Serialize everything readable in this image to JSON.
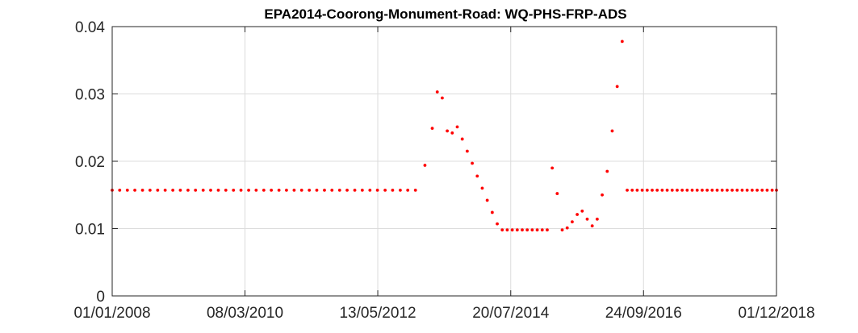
{
  "chart_data": {
    "type": "scatter",
    "title": "EPA2014-Coorong-Monument-Road: WQ-PHS-FRP-ADS",
    "xlabel": "",
    "ylabel": "",
    "x_axis": "date",
    "xlim": [
      "2008-01-01",
      "2018-12-01"
    ],
    "ylim": [
      0,
      0.04
    ],
    "xticks": [
      "2008-01-01",
      "2010-03-08",
      "2012-05-13",
      "2014-07-20",
      "2016-09-24",
      "2018-12-01"
    ],
    "xtick_labels": [
      "01/01/2008",
      "08/03/2010",
      "13/05/2012",
      "20/07/2014",
      "24/09/2016",
      "01/12/2018"
    ],
    "yticks": [
      0,
      0.01,
      0.02,
      0.03,
      0.04
    ],
    "ytick_labels": [
      "0",
      "0.01",
      "0.02",
      "0.03",
      "0.04"
    ],
    "grid": true,
    "legend": "none",
    "colors": {
      "marker": "#ff0000",
      "grid": "#dcdcdc",
      "axis": "#262626"
    },
    "series": [
      {
        "color": "#ff0000",
        "points": [
          {
            "x": "2008-01-01",
            "y": 0.0157
          },
          {
            "x": "2008-02-15",
            "y": 0.0157
          },
          {
            "x": "2008-04-01",
            "y": 0.0157
          },
          {
            "x": "2008-05-16",
            "y": 0.0157
          },
          {
            "x": "2008-07-01",
            "y": 0.0157
          },
          {
            "x": "2008-08-15",
            "y": 0.0157
          },
          {
            "x": "2008-09-30",
            "y": 0.0157
          },
          {
            "x": "2008-11-14",
            "y": 0.0157
          },
          {
            "x": "2008-12-30",
            "y": 0.0157
          },
          {
            "x": "2009-02-13",
            "y": 0.0157
          },
          {
            "x": "2009-03-31",
            "y": 0.0157
          },
          {
            "x": "2009-05-15",
            "y": 0.0157
          },
          {
            "x": "2009-06-30",
            "y": 0.0157
          },
          {
            "x": "2009-08-14",
            "y": 0.0157
          },
          {
            "x": "2009-09-29",
            "y": 0.0157
          },
          {
            "x": "2009-11-13",
            "y": 0.0157
          },
          {
            "x": "2009-12-29",
            "y": 0.0157
          },
          {
            "x": "2010-02-12",
            "y": 0.0157
          },
          {
            "x": "2010-03-30",
            "y": 0.0157
          },
          {
            "x": "2010-05-14",
            "y": 0.0157
          },
          {
            "x": "2010-06-29",
            "y": 0.0157
          },
          {
            "x": "2010-08-13",
            "y": 0.0157
          },
          {
            "x": "2010-09-28",
            "y": 0.0157
          },
          {
            "x": "2010-11-12",
            "y": 0.0157
          },
          {
            "x": "2010-12-28",
            "y": 0.0157
          },
          {
            "x": "2011-02-11",
            "y": 0.0157
          },
          {
            "x": "2011-03-29",
            "y": 0.0157
          },
          {
            "x": "2011-05-13",
            "y": 0.0157
          },
          {
            "x": "2011-06-28",
            "y": 0.0157
          },
          {
            "x": "2011-08-12",
            "y": 0.0157
          },
          {
            "x": "2011-09-27",
            "y": 0.0157
          },
          {
            "x": "2011-11-11",
            "y": 0.0157
          },
          {
            "x": "2011-12-27",
            "y": 0.0157
          },
          {
            "x": "2012-02-10",
            "y": 0.0157
          },
          {
            "x": "2012-03-27",
            "y": 0.0157
          },
          {
            "x": "2012-05-11",
            "y": 0.0157
          },
          {
            "x": "2012-06-26",
            "y": 0.0157
          },
          {
            "x": "2012-08-10",
            "y": 0.0157
          },
          {
            "x": "2012-09-25",
            "y": 0.0157
          },
          {
            "x": "2012-11-09",
            "y": 0.0157
          },
          {
            "x": "2012-12-25",
            "y": 0.0157
          },
          {
            "x": "2013-02-20",
            "y": 0.0194
          },
          {
            "x": "2013-04-05",
            "y": 0.0249
          },
          {
            "x": "2013-05-05",
            "y": 0.0303
          },
          {
            "x": "2013-06-04",
            "y": 0.0294
          },
          {
            "x": "2013-07-04",
            "y": 0.0245
          },
          {
            "x": "2013-08-03",
            "y": 0.0242
          },
          {
            "x": "2013-09-02",
            "y": 0.0251
          },
          {
            "x": "2013-10-02",
            "y": 0.0233
          },
          {
            "x": "2013-11-01",
            "y": 0.0215
          },
          {
            "x": "2013-12-01",
            "y": 0.0197
          },
          {
            "x": "2013-12-31",
            "y": 0.0178
          },
          {
            "x": "2014-01-30",
            "y": 0.016
          },
          {
            "x": "2014-03-01",
            "y": 0.0142
          },
          {
            "x": "2014-03-31",
            "y": 0.0124
          },
          {
            "x": "2014-04-30",
            "y": 0.0107
          },
          {
            "x": "2014-05-30",
            "y": 0.0098
          },
          {
            "x": "2014-06-29",
            "y": 0.0098
          },
          {
            "x": "2014-07-29",
            "y": 0.0098
          },
          {
            "x": "2014-08-28",
            "y": 0.0098
          },
          {
            "x": "2014-09-27",
            "y": 0.0098
          },
          {
            "x": "2014-10-27",
            "y": 0.0098
          },
          {
            "x": "2014-11-26",
            "y": 0.0098
          },
          {
            "x": "2014-12-26",
            "y": 0.0098
          },
          {
            "x": "2015-01-25",
            "y": 0.0098
          },
          {
            "x": "2015-02-24",
            "y": 0.0098
          },
          {
            "x": "2015-03-26",
            "y": 0.019
          },
          {
            "x": "2015-04-25",
            "y": 0.0152
          },
          {
            "x": "2015-05-25",
            "y": 0.0098
          },
          {
            "x": "2015-06-24",
            "y": 0.0101
          },
          {
            "x": "2015-07-24",
            "y": 0.011
          },
          {
            "x": "2015-08-23",
            "y": 0.0121
          },
          {
            "x": "2015-09-22",
            "y": 0.0126
          },
          {
            "x": "2015-10-22",
            "y": 0.0114
          },
          {
            "x": "2015-11-21",
            "y": 0.0104
          },
          {
            "x": "2015-12-21",
            "y": 0.0114
          },
          {
            "x": "2016-01-20",
            "y": 0.015
          },
          {
            "x": "2016-02-19",
            "y": 0.0185
          },
          {
            "x": "2016-03-20",
            "y": 0.0245
          },
          {
            "x": "2016-04-19",
            "y": 0.0311
          },
          {
            "x": "2016-05-19",
            "y": 0.0378
          },
          {
            "x": "2016-06-18",
            "y": 0.0157
          },
          {
            "x": "2016-07-18",
            "y": 0.0157
          },
          {
            "x": "2016-08-17",
            "y": 0.0157
          },
          {
            "x": "2016-09-16",
            "y": 0.0157
          },
          {
            "x": "2016-10-16",
            "y": 0.0157
          },
          {
            "x": "2016-11-15",
            "y": 0.0157
          },
          {
            "x": "2016-12-15",
            "y": 0.0157
          },
          {
            "x": "2017-01-14",
            "y": 0.0157
          },
          {
            "x": "2017-02-13",
            "y": 0.0157
          },
          {
            "x": "2017-03-15",
            "y": 0.0157
          },
          {
            "x": "2017-04-14",
            "y": 0.0157
          },
          {
            "x": "2017-05-14",
            "y": 0.0157
          },
          {
            "x": "2017-06-13",
            "y": 0.0157
          },
          {
            "x": "2017-07-13",
            "y": 0.0157
          },
          {
            "x": "2017-08-12",
            "y": 0.0157
          },
          {
            "x": "2017-09-11",
            "y": 0.0157
          },
          {
            "x": "2017-10-11",
            "y": 0.0157
          },
          {
            "x": "2017-11-10",
            "y": 0.0157
          },
          {
            "x": "2017-12-10",
            "y": 0.0157
          },
          {
            "x": "2018-01-09",
            "y": 0.0157
          },
          {
            "x": "2018-02-08",
            "y": 0.0157
          },
          {
            "x": "2018-03-10",
            "y": 0.0157
          },
          {
            "x": "2018-04-09",
            "y": 0.0157
          },
          {
            "x": "2018-05-09",
            "y": 0.0157
          },
          {
            "x": "2018-06-08",
            "y": 0.0157
          },
          {
            "x": "2018-07-08",
            "y": 0.0157
          },
          {
            "x": "2018-08-07",
            "y": 0.0157
          },
          {
            "x": "2018-09-06",
            "y": 0.0157
          },
          {
            "x": "2018-10-06",
            "y": 0.0157
          },
          {
            "x": "2018-11-05",
            "y": 0.0157
          },
          {
            "x": "2018-12-01",
            "y": 0.0157
          }
        ]
      }
    ]
  }
}
